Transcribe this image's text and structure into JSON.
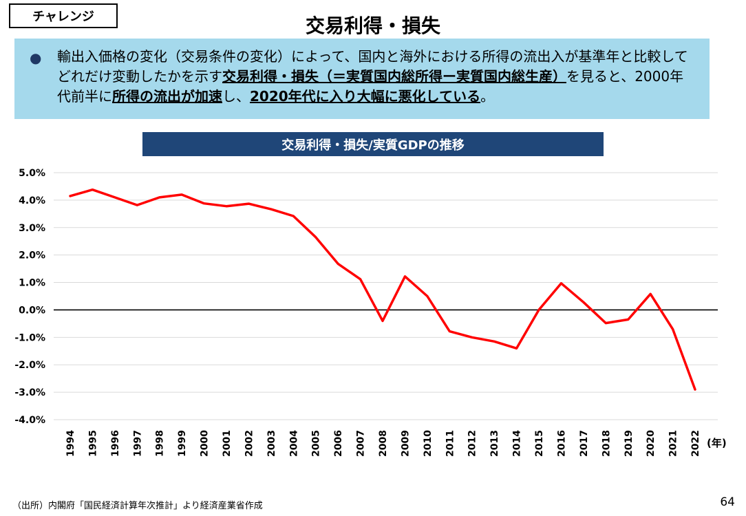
{
  "header": {
    "tag_label": "チャレンジ",
    "title": "交易利得・損失"
  },
  "summary": {
    "bullet": "●",
    "part1": "輸出入価格の変化（交易条件の変化）によって、国内と海外における所得の流出入が基準年と比較してどれだけ変動したかを示す",
    "part2": "交易利得・損失（＝実質国内総所得ー実質国内総生産）",
    "part3": "を見ると、2000年代前半に",
    "part4": "所得の流出が加速",
    "part5": "し、",
    "part6": "2020年代に入り大幅に悪化している",
    "part7": "。"
  },
  "chart_data": {
    "type": "line",
    "title": "交易利得・損失/実質GDPの推移",
    "x_unit_label": "(年)",
    "x": [
      "1994",
      "1995",
      "1996",
      "1997",
      "1998",
      "1999",
      "2000",
      "2001",
      "2002",
      "2003",
      "2004",
      "2005",
      "2006",
      "2007",
      "2008",
      "2009",
      "2010",
      "2011",
      "2012",
      "2013",
      "2014",
      "2015",
      "2016",
      "2017",
      "2018",
      "2019",
      "2020",
      "2021",
      "2022"
    ],
    "y_tick_labels": [
      "5.0%",
      "4.0%",
      "3.0%",
      "2.0%",
      "1.0%",
      "0.0%",
      "-1.0%",
      "-2.0%",
      "-3.0%",
      "-4.0%"
    ],
    "ylim": [
      -4.0,
      5.0
    ],
    "grid": true,
    "series": [
      {
        "color": "#ff0000",
        "values": [
          4.15,
          4.38,
          4.1,
          3.82,
          4.1,
          4.2,
          3.88,
          3.78,
          3.87,
          3.67,
          3.42,
          2.65,
          1.68,
          1.12,
          -0.4,
          1.22,
          0.5,
          -0.78,
          -1.0,
          -1.15,
          -1.4,
          0.0,
          0.97,
          0.28,
          -0.48,
          -0.35,
          0.58,
          -0.7,
          -2.9
        ]
      }
    ]
  },
  "footer": {
    "source": "（出所）内閣府「国民経済計算年次推計」より経済産業省作成",
    "page_number": "64"
  }
}
